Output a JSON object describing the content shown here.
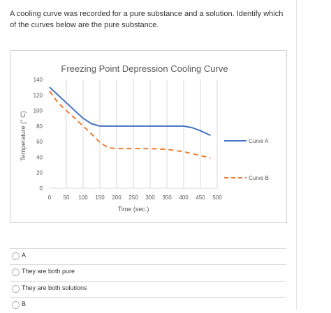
{
  "question": {
    "text": "A cooling curve was recorded for a pure substance and a solution.  Identify which of the curves below are the pure substance."
  },
  "chart_data": {
    "type": "line",
    "title": "Freezing Point Depression Cooling Curve",
    "xlabel": "Time (sec.)",
    "ylabel": "Temperature (° C)",
    "xlim": [
      0,
      500
    ],
    "ylim": [
      0,
      140
    ],
    "xticks": [
      0,
      50,
      100,
      150,
      200,
      250,
      300,
      350,
      400,
      450,
      500
    ],
    "yticks": [
      0,
      20,
      40,
      60,
      80,
      100,
      120,
      140
    ],
    "grid": "vertical",
    "legend": "right",
    "series": [
      {
        "name": "Curve A",
        "color": "#4472c4",
        "style": "solid",
        "points": [
          [
            0,
            130
          ],
          [
            25,
            120
          ],
          [
            50,
            110
          ],
          [
            75,
            100
          ],
          [
            100,
            90
          ],
          [
            125,
            83
          ],
          [
            150,
            80
          ],
          [
            175,
            80
          ],
          [
            200,
            80
          ],
          [
            250,
            80
          ],
          [
            300,
            80
          ],
          [
            350,
            80
          ],
          [
            400,
            80
          ],
          [
            425,
            78
          ],
          [
            450,
            74
          ],
          [
            475,
            69
          ],
          [
            480,
            68
          ]
        ]
      },
      {
        "name": "Curve B",
        "color": "#ed7d31",
        "style": "dashed",
        "points": [
          [
            0,
            125
          ],
          [
            25,
            110
          ],
          [
            50,
            100
          ],
          [
            75,
            90
          ],
          [
            100,
            80
          ],
          [
            125,
            70
          ],
          [
            150,
            59
          ],
          [
            175,
            52
          ],
          [
            200,
            51
          ],
          [
            250,
            51
          ],
          [
            300,
            51
          ],
          [
            350,
            50
          ],
          [
            400,
            47
          ],
          [
            450,
            42
          ],
          [
            480,
            39
          ]
        ]
      }
    ]
  },
  "options": [
    {
      "label": "A"
    },
    {
      "label": "They are both pure"
    },
    {
      "label": "They are both solutions"
    },
    {
      "label": "B"
    }
  ]
}
